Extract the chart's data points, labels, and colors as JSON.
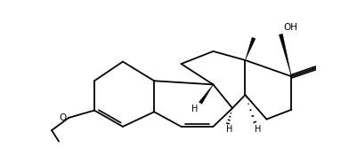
{
  "background": "#ffffff",
  "line_color": "#000000",
  "lw": 1.3,
  "fig_width": 4.01,
  "fig_height": 1.84,
  "dpi": 100,
  "xlim": [
    0,
    11
  ],
  "ylim": [
    0,
    5.2
  ]
}
